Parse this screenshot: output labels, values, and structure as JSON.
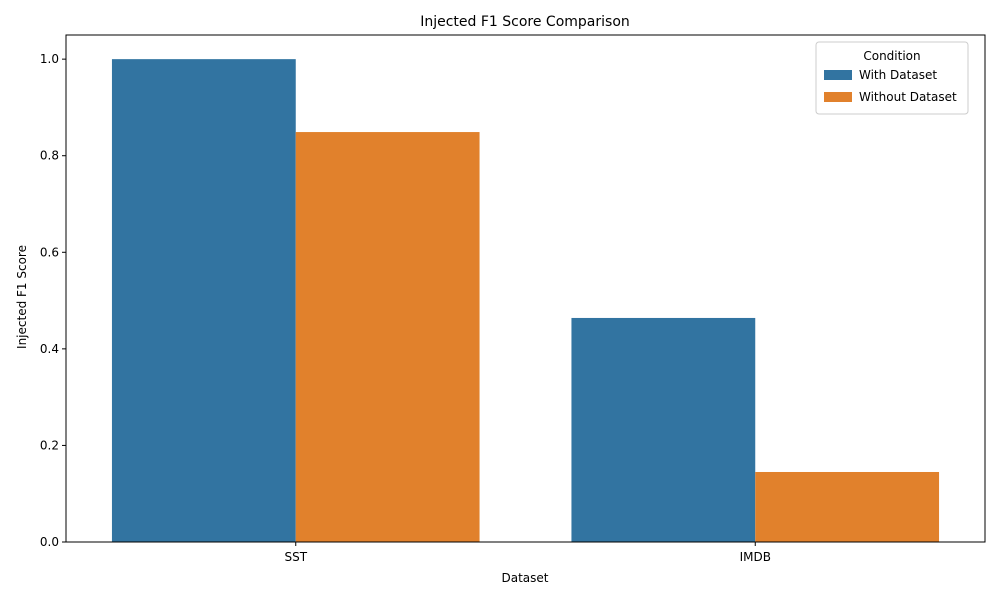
{
  "chart_data": {
    "type": "bar",
    "title": "Injected F1 Score Comparison",
    "xlabel": "Dataset",
    "ylabel": "Injected F1 Score",
    "categories": [
      "SST",
      "IMDB"
    ],
    "series": [
      {
        "name": "With Dataset",
        "values": [
          1.0,
          0.464
        ],
        "color": "#3274a1"
      },
      {
        "name": "Without Dataset",
        "values": [
          0.849,
          0.145
        ],
        "color": "#e1812c"
      }
    ],
    "ylim": [
      0,
      1.05
    ],
    "yticks": [
      0.0,
      0.2,
      0.4,
      0.6,
      0.8,
      1.0
    ],
    "ytick_labels": [
      "0.0",
      "0.2",
      "0.4",
      "0.6",
      "0.8",
      "1.0"
    ],
    "grid": false,
    "legend": {
      "title": "Condition",
      "placement": "top-right"
    }
  }
}
